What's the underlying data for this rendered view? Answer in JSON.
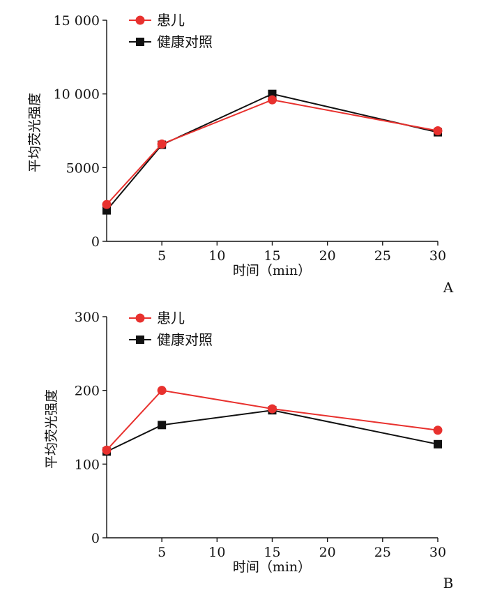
{
  "chart_data": [
    {
      "type": "line",
      "panel_label": "A",
      "xlabel": "时间（min）",
      "ylabel": "平均荧光强度",
      "xlim": [
        0,
        30
      ],
      "ylim": [
        0,
        15000
      ],
      "xticks": [
        5,
        10,
        15,
        20,
        25,
        30
      ],
      "xtick_labels": [
        "5",
        "10",
        "15",
        "20",
        "25",
        "30"
      ],
      "yticks": [
        0,
        5000,
        10000,
        15000
      ],
      "ytick_labels": [
        "0",
        "5000",
        "10 000",
        "15 000"
      ],
      "grid": false,
      "legend": "top-left",
      "series": [
        {
          "name": "患儿",
          "color": "#e8312e",
          "marker": "circle",
          "x": [
            0,
            5,
            15,
            30
          ],
          "y": [
            2500,
            6600,
            9600,
            7500
          ]
        },
        {
          "name": "健康对照",
          "color": "#111111",
          "marker": "square",
          "x": [
            0,
            5,
            15,
            30
          ],
          "y": [
            2100,
            6550,
            10000,
            7400
          ]
        }
      ]
    },
    {
      "type": "line",
      "panel_label": "B",
      "xlabel": "时间（min）",
      "ylabel": "平均荧光强度",
      "xlim": [
        0,
        30
      ],
      "ylim": [
        0,
        300
      ],
      "xticks": [
        5,
        10,
        15,
        20,
        25,
        30
      ],
      "xtick_labels": [
        "5",
        "10",
        "15",
        "20",
        "25",
        "30"
      ],
      "yticks": [
        0,
        100,
        200,
        300
      ],
      "ytick_labels": [
        "0",
        "100",
        "200",
        "300"
      ],
      "grid": false,
      "legend": "top-left",
      "series": [
        {
          "name": "患儿",
          "color": "#e8312e",
          "marker": "circle",
          "x": [
            0,
            5,
            15,
            30
          ],
          "y": [
            119,
            200,
            175,
            146
          ]
        },
        {
          "name": "健康对照",
          "color": "#111111",
          "marker": "square",
          "x": [
            0,
            5,
            15,
            30
          ],
          "y": [
            117,
            153,
            173,
            127
          ]
        }
      ]
    }
  ]
}
